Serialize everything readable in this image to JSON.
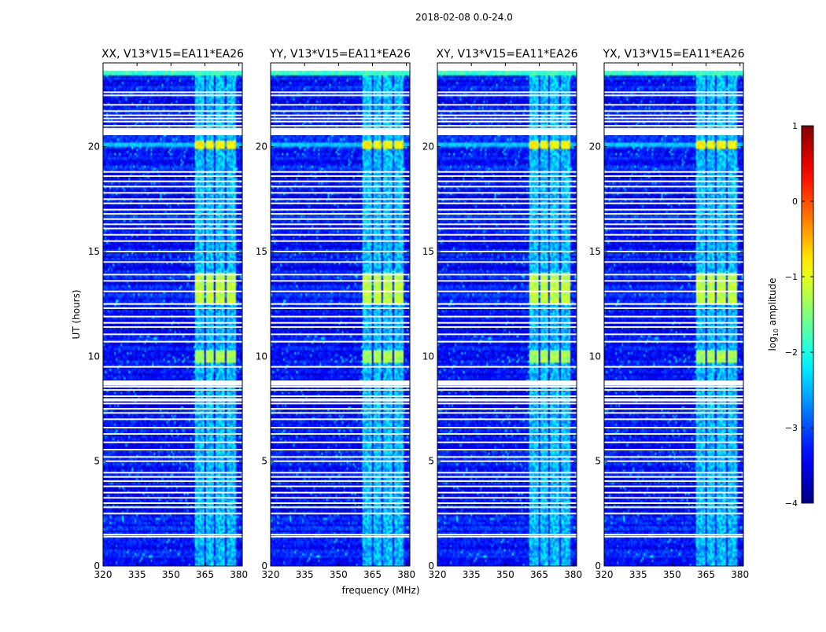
{
  "chart_data": {
    "type": "heatmap",
    "title": "2018-02-08 0.0-24.0",
    "xlabel": "frequency (MHz)",
    "ylabel": "UT (hours)",
    "xlim": [
      320,
      381.5
    ],
    "ylim": [
      0,
      24
    ],
    "x_ticks": [
      320,
      335,
      350,
      365,
      380
    ],
    "y_ticks": [
      0,
      5,
      10,
      15,
      20
    ],
    "panels": [
      {
        "name": "XX",
        "title": "XX, V13*V15=EA11*EA26"
      },
      {
        "name": "YY",
        "title": "YY, V13*V15=EA11*EA26"
      },
      {
        "name": "XY",
        "title": "XY, V13*V15=EA11*EA26"
      },
      {
        "name": "YX",
        "title": "YX, V13*V15=EA11*EA26"
      }
    ],
    "colorbar": {
      "label": "log10 amplitude",
      "label_main": "log",
      "label_sub": "10",
      "label_tail": " amplitude",
      "min": -4,
      "max": 1,
      "ticks": [
        1,
        0,
        -1,
        -2,
        -3,
        -4
      ],
      "colormap": "jet"
    },
    "rfi_bands_mhz": [
      {
        "start": 360.8,
        "end": 365.0
      },
      {
        "start": 365.6,
        "end": 369.0
      },
      {
        "start": 369.8,
        "end": 373.6
      },
      {
        "start": 374.3,
        "end": 378.5
      }
    ],
    "bright_intervals_ut": [
      {
        "start": 9.7,
        "end": 10.3,
        "level": -1.3
      },
      {
        "start": 12.5,
        "end": 14.0,
        "level": -1.2
      },
      {
        "start": 19.9,
        "end": 20.3,
        "level": -0.8
      }
    ],
    "flagged_ut": [
      1.4,
      1.5,
      2.5,
      2.8,
      3.0,
      3.25,
      3.5,
      3.8,
      4.05,
      4.25,
      4.45,
      5.0,
      5.2,
      5.55,
      5.9,
      6.3,
      6.6,
      7.0,
      7.3,
      7.5,
      7.75,
      8.1,
      8.4,
      8.55,
      8.75,
      9.5,
      10.7,
      11.05,
      11.4,
      11.6,
      11.9,
      12.3,
      12.5,
      13.1,
      13.6,
      13.9,
      14.5,
      15.0,
      15.5,
      15.8,
      16.1,
      16.3,
      16.55,
      16.8,
      17.0,
      17.3,
      17.5,
      17.8,
      18.1,
      18.35,
      18.6,
      18.8,
      21.0,
      21.2,
      21.35,
      21.5,
      21.7,
      22.0,
      22.45,
      22.6
    ]
  }
}
